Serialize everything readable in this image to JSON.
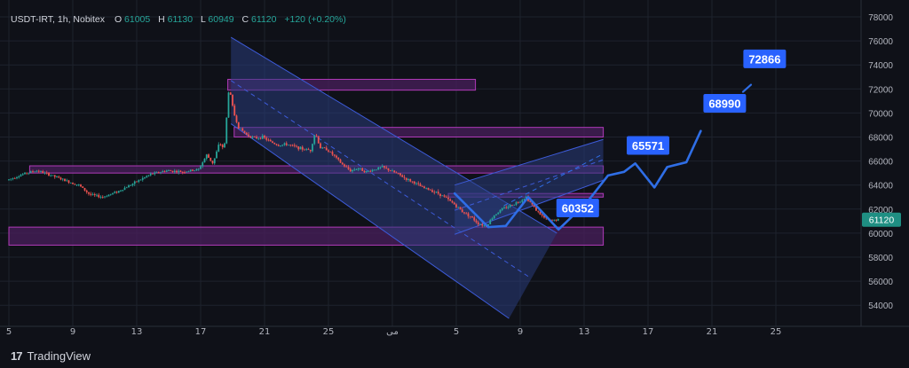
{
  "header": {
    "symbol": "USDT-IRT, 1h, Nobitex",
    "o_label": "O",
    "o_value": "61005",
    "h_label": "H",
    "h_value": "61130",
    "l_label": "L",
    "l_value": "60949",
    "c_label": "C",
    "c_value": "61120",
    "change": "+120 (+0.20%)"
  },
  "branding": {
    "logo": "17",
    "name": "TradingView"
  },
  "colors": {
    "background": "#0f1118",
    "grid": "#1e222d",
    "axis_text": "#b2b5be",
    "header_green": "#26a69a",
    "candle_up": "#26a69a",
    "candle_down": "#ef5350",
    "zone_fill": "#4a1f5c",
    "zone_stroke": "#b03ab9",
    "channel_fill": "#2a3d7c",
    "channel_stroke": "#3d5bd9",
    "projection": "#2f6ee6",
    "callout_bg": "#2962ff",
    "price_tag_bg": "#1f8f83"
  },
  "chart_data": {
    "type": "candlestick",
    "symbol": "USDT-IRT",
    "interval": "1h",
    "exchange": "Nobitex",
    "ylim": [
      52700,
      78500
    ],
    "y_ticks": [
      54000,
      56000,
      58000,
      60000,
      62000,
      64000,
      66000,
      68000,
      70000,
      72000,
      74000,
      76000,
      78000
    ],
    "x_tick_labels": [
      "5",
      "9",
      "13",
      "17",
      "21",
      "25",
      "مى",
      "5",
      "9",
      "13",
      "17",
      "21",
      "25"
    ],
    "last_price": 61120,
    "price_path": [
      [
        0,
        64400
      ],
      [
        0.6,
        64700
      ],
      [
        1.2,
        65000
      ],
      [
        1.9,
        65200
      ],
      [
        2.8,
        64800
      ],
      [
        3.8,
        64300
      ],
      [
        4.5,
        64000
      ],
      [
        5.2,
        63200
      ],
      [
        6.0,
        63000
      ],
      [
        7.0,
        63500
      ],
      [
        8.0,
        64200
      ],
      [
        9.0,
        64900
      ],
      [
        10.0,
        65200
      ],
      [
        11.0,
        65100
      ],
      [
        12.0,
        65300
      ],
      [
        12.5,
        66500
      ],
      [
        12.9,
        65800
      ],
      [
        13.3,
        67500
      ],
      [
        13.6,
        67000
      ],
      [
        13.9,
        72200
      ],
      [
        14.2,
        70000
      ],
      [
        14.5,
        68800
      ],
      [
        15.0,
        68200
      ],
      [
        15.5,
        67900
      ],
      [
        16.0,
        68000
      ],
      [
        16.5,
        67600
      ],
      [
        17.0,
        67300
      ],
      [
        17.5,
        67400
      ],
      [
        18.0,
        67200
      ],
      [
        18.5,
        67000
      ],
      [
        19.0,
        66900
      ],
      [
        19.3,
        68400
      ],
      [
        19.6,
        67100
      ],
      [
        20.0,
        67000
      ],
      [
        20.5,
        66400
      ],
      [
        21.0,
        65700
      ],
      [
        21.5,
        65200
      ],
      [
        22.0,
        65400
      ],
      [
        22.5,
        65100
      ],
      [
        23.0,
        65300
      ],
      [
        23.5,
        65500
      ],
      [
        24.0,
        65200
      ],
      [
        24.5,
        64900
      ],
      [
        25.0,
        64500
      ],
      [
        25.5,
        64200
      ],
      [
        26.0,
        63800
      ],
      [
        26.5,
        63600
      ],
      [
        27.0,
        63300
      ],
      [
        27.5,
        62900
      ],
      [
        28.0,
        62400
      ],
      [
        28.5,
        61800
      ],
      [
        29.0,
        61400
      ],
      [
        29.5,
        60800
      ],
      [
        30.0,
        60600
      ],
      [
        30.5,
        61500
      ],
      [
        31.0,
        62000
      ],
      [
        31.5,
        62300
      ],
      [
        32.0,
        62600
      ],
      [
        32.5,
        63000
      ],
      [
        32.8,
        62500
      ],
      [
        33.2,
        61800
      ],
      [
        33.6,
        61300
      ],
      [
        34.0,
        61000
      ],
      [
        34.4,
        61120
      ]
    ],
    "zones": [
      {
        "d1": 13.7,
        "d2": 29.2,
        "y_low": 71900,
        "y_high": 72800
      },
      {
        "d1": 14.1,
        "d2": 37.2,
        "y_low": 68000,
        "y_high": 68800
      },
      {
        "d1": 1.3,
        "d2": 37.2,
        "y_low": 65000,
        "y_high": 65600
      },
      {
        "d1": 27.5,
        "d2": 37.2,
        "y_low": 63000,
        "y_high": 63300
      },
      {
        "d1": 0,
        "d2": 37.2,
        "y_low": 59000,
        "y_high": 60500
      }
    ],
    "descending_channel": {
      "upper": [
        [
          13.9,
          76300
        ],
        [
          34.3,
          60000
        ]
      ],
      "lower": [
        [
          13.9,
          69100
        ],
        [
          31.3,
          52900
        ]
      ],
      "mid": [
        [
          13.9,
          72700
        ],
        [
          32.5,
          56400
        ]
      ]
    },
    "ascending_channel": {
      "upper": [
        [
          27.9,
          64000
        ],
        [
          37.2,
          67800
        ]
      ],
      "lower": [
        [
          27.9,
          59900
        ],
        [
          37.2,
          64400
        ]
      ],
      "mid": [
        [
          27.9,
          61900
        ],
        [
          37.2,
          66100
        ]
      ]
    },
    "projection_path": [
      [
        27.9,
        63300
      ],
      [
        30.0,
        60500
      ],
      [
        31.1,
        60600
      ],
      [
        32.5,
        63000
      ],
      [
        34.4,
        60300
      ],
      [
        36.2,
        62600
      ],
      [
        37.5,
        64800
      ],
      [
        38.5,
        65100
      ],
      [
        39.2,
        65800
      ],
      [
        40.4,
        63800
      ],
      [
        41.2,
        65500
      ],
      [
        42.4,
        65900
      ],
      [
        43.3,
        68500
      ]
    ],
    "dashed_projection": [
      [
        31.0,
        62300
      ],
      [
        37.2,
        66600
      ]
    ],
    "targets": [
      {
        "label": "60352",
        "value": 60352,
        "d": 34.4,
        "box_d": 35.6,
        "box_y": 62100
      },
      {
        "label": "65571",
        "value": 65571,
        "d": 39.0,
        "box_d": 40.0,
        "box_y": 67300
      },
      {
        "label": "68990",
        "value": 68990,
        "d": 43.3,
        "box_d": 44.8,
        "box_y": 70800
      },
      {
        "label": "72866",
        "value": 72866,
        "d": 46.0,
        "box_d": 47.3,
        "box_y": 74500
      }
    ]
  }
}
